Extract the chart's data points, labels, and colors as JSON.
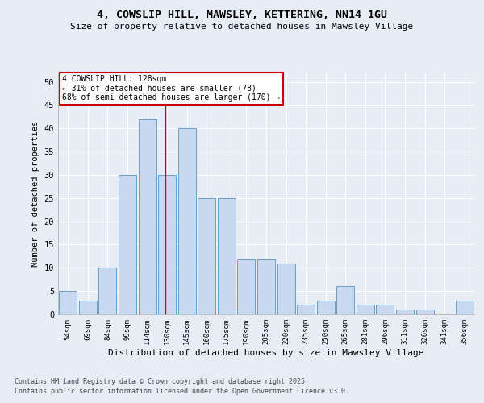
{
  "title1": "4, COWSLIP HILL, MAWSLEY, KETTERING, NN14 1GU",
  "title2": "Size of property relative to detached houses in Mawsley Village",
  "xlabel": "Distribution of detached houses by size in Mawsley Village",
  "ylabel": "Number of detached properties",
  "categories": [
    "54sqm",
    "69sqm",
    "84sqm",
    "99sqm",
    "114sqm",
    "130sqm",
    "145sqm",
    "160sqm",
    "175sqm",
    "190sqm",
    "205sqm",
    "220sqm",
    "235sqm",
    "250sqm",
    "265sqm",
    "281sqm",
    "296sqm",
    "311sqm",
    "326sqm",
    "341sqm",
    "356sqm"
  ],
  "values": [
    5,
    3,
    10,
    30,
    42,
    30,
    40,
    25,
    25,
    12,
    12,
    11,
    2,
    3,
    6,
    2,
    2,
    1,
    1,
    0,
    3
  ],
  "bar_color": "#c8d9ef",
  "bar_edge_color": "#6b9fc8",
  "bg_color": "#e8edf5",
  "grid_color": "#ffffff",
  "annotation_text": "4 COWSLIP HILL: 128sqm\n← 31% of detached houses are smaller (78)\n68% of semi-detached houses are larger (170) →",
  "annotation_box_color": "#ffffff",
  "annotation_box_edge": "#cc0000",
  "vline_color": "#cc0000",
  "vline_x": 4.93,
  "ylim": [
    0,
    52
  ],
  "yticks": [
    0,
    5,
    10,
    15,
    20,
    25,
    30,
    35,
    40,
    45,
    50
  ],
  "footer1": "Contains HM Land Registry data © Crown copyright and database right 2025.",
  "footer2": "Contains public sector information licensed under the Open Government Licence v3.0."
}
